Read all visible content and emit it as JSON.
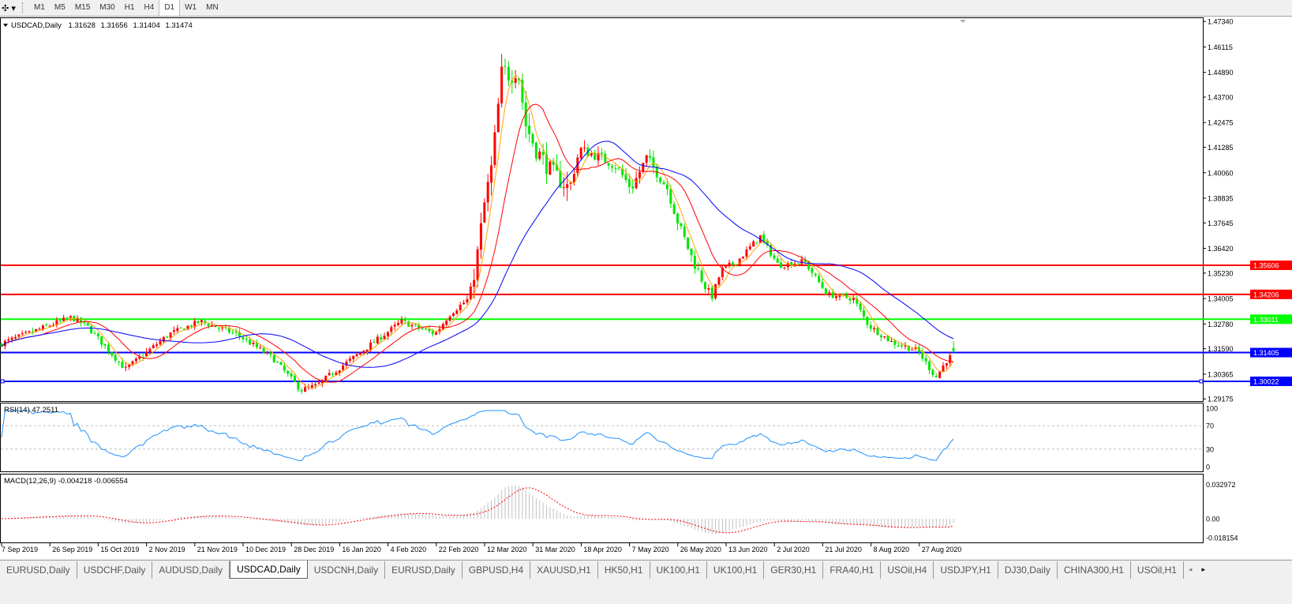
{
  "toolbar": {
    "tool_icon": "crosshair-dropdown-icon",
    "timeframes": [
      "M1",
      "M5",
      "M15",
      "M30",
      "H1",
      "H4",
      "D1",
      "W1",
      "MN"
    ],
    "active_timeframe": "D1"
  },
  "chart_header": {
    "symbol": "USDCAD,Daily",
    "open": "1.31628",
    "high": "1.31656",
    "low": "1.31404",
    "close": "1.31474"
  },
  "chart_data": [
    {
      "type": "candlestick",
      "symbol": "USDCAD",
      "timeframe": "Daily",
      "ylim": [
        1.29175,
        1.4734
      ],
      "y_ticks": [
        "1.47340",
        "1.46115",
        "1.44890",
        "1.43700",
        "1.42475",
        "1.41285",
        "1.40060",
        "1.38835",
        "1.37645",
        "1.36420",
        "1.35230",
        "1.34005",
        "1.32780",
        "1.31590",
        "1.30365",
        "1.29175"
      ],
      "x_ticks": [
        "7 Sep 2019",
        "26 Sep 2019",
        "15 Oct 2019",
        "2 Nov 2019",
        "21 Nov 2019",
        "10 Dec 2019",
        "28 Dec 2019",
        "16 Jan 2020",
        "4 Feb 2020",
        "22 Feb 2020",
        "12 Mar 2020",
        "31 Mar 2020",
        "18 Apr 2020",
        "7 May 2020",
        "26 May 2020",
        "13 Jun 2020",
        "2 Jul 2020",
        "21 Jul 2020",
        "8 Aug 2020",
        "27 Aug 2020"
      ],
      "up_color": "#ff0000",
      "down_color": "#00e600",
      "approx_close_path": [
        [
          "2019-09-06",
          1.318
        ],
        [
          "2019-10-04",
          1.331
        ],
        [
          "2019-10-10",
          1.327
        ],
        [
          "2019-10-25",
          1.306
        ],
        [
          "2019-11-11",
          1.323
        ],
        [
          "2019-11-23",
          1.329
        ],
        [
          "2019-12-07",
          1.323
        ],
        [
          "2019-12-21",
          1.3115
        ],
        [
          "2020-01-01",
          1.296
        ],
        [
          "2020-01-07",
          1.298
        ],
        [
          "2020-01-13",
          1.304
        ],
        [
          "2020-01-25",
          1.315
        ],
        [
          "2020-02-09",
          1.329
        ],
        [
          "2020-02-22",
          1.323
        ],
        [
          "2020-02-28",
          1.333
        ],
        [
          "2020-03-06",
          1.34
        ],
        [
          "2020-03-09",
          1.358
        ],
        [
          "2020-03-12",
          1.385
        ],
        [
          "2020-03-15",
          1.404
        ],
        [
          "2020-03-19",
          1.451
        ],
        [
          "2020-03-22",
          1.447
        ],
        [
          "2020-03-25",
          1.451
        ],
        [
          "2020-03-28",
          1.424
        ],
        [
          "2020-04-01",
          1.412
        ],
        [
          "2020-04-07",
          1.401
        ],
        [
          "2020-04-14",
          1.393
        ],
        [
          "2020-04-18",
          1.412
        ],
        [
          "2020-04-26",
          1.408
        ],
        [
          "2020-05-02",
          1.404
        ],
        [
          "2020-05-08",
          1.393
        ],
        [
          "2020-05-14",
          1.408
        ],
        [
          "2020-05-22",
          1.393
        ],
        [
          "2020-05-26",
          1.377
        ],
        [
          "2020-06-01",
          1.358
        ],
        [
          "2020-06-08",
          1.34
        ],
        [
          "2020-06-12",
          1.354
        ],
        [
          "2020-06-18",
          1.358
        ],
        [
          "2020-06-27",
          1.37
        ],
        [
          "2020-07-04",
          1.356
        ],
        [
          "2020-07-14",
          1.358
        ],
        [
          "2020-07-23",
          1.342
        ],
        [
          "2020-08-02",
          1.34
        ],
        [
          "2020-08-08",
          1.327
        ],
        [
          "2020-08-17",
          1.319
        ],
        [
          "2020-08-27",
          1.315
        ],
        [
          "2020-09-03",
          1.302
        ],
        [
          "2020-09-07",
          1.31
        ],
        [
          "2020-09-11",
          1.31474
        ]
      ],
      "moving_averages": [
        {
          "color": "#ffa500"
        },
        {
          "color": "#ff0000"
        },
        {
          "color": "#0000ff"
        }
      ],
      "horizontal_lines": [
        {
          "price": 1.35606,
          "label": "1.35606",
          "color": "#ff0000"
        },
        {
          "price": 1.34206,
          "label": "1.34206",
          "color": "#ff0000"
        },
        {
          "price": 1.33011,
          "label": "1.33011",
          "color": "#00ff00"
        },
        {
          "price": 1.31405,
          "label": "1.31405",
          "color": "#0000ff"
        },
        {
          "price": 1.30022,
          "label": "1.30022",
          "color": "#0000ff"
        }
      ]
    },
    {
      "type": "line",
      "title": "RSI(14) 47.2511",
      "ylim": [
        0,
        100
      ],
      "levels": [
        70,
        30
      ],
      "y_ticks": [
        "100",
        "70",
        "30",
        "0"
      ],
      "color": "#1e90ff",
      "last_value": 47.2511
    },
    {
      "type": "histogram",
      "title": "MACD(12,26,9) -0.004218 -0.006554",
      "ylim": [
        -0.018154,
        0.032972
      ],
      "y_ticks": [
        "0.032972",
        "0.00",
        "-0.018154"
      ],
      "main_last": -0.004218,
      "signal_last": -0.006554,
      "histogram_color": "#c0c0c0",
      "signal_color": "#ff0000"
    }
  ],
  "tabs": [
    {
      "label": "EURUSD,Daily"
    },
    {
      "label": "USDCHF,Daily"
    },
    {
      "label": "AUDUSD,Daily"
    },
    {
      "label": "USDCAD,Daily",
      "active": true
    },
    {
      "label": "USDCNH,Daily"
    },
    {
      "label": "EURUSD,Daily"
    },
    {
      "label": "GBPUSD,H4"
    },
    {
      "label": "XAUUSD,H1"
    },
    {
      "label": "HK50,H1"
    },
    {
      "label": "UK100,H1"
    },
    {
      "label": "UK100,H1"
    },
    {
      "label": "GER30,H1"
    },
    {
      "label": "FRA40,H1"
    },
    {
      "label": "USOil,H4"
    },
    {
      "label": "USDJPY,H1"
    },
    {
      "label": "DJ30,Daily"
    },
    {
      "label": "CHINA300,H1"
    },
    {
      "label": "USOil,H1"
    }
  ],
  "tab_nav": {
    "prev": "◂",
    "next": "▸"
  }
}
